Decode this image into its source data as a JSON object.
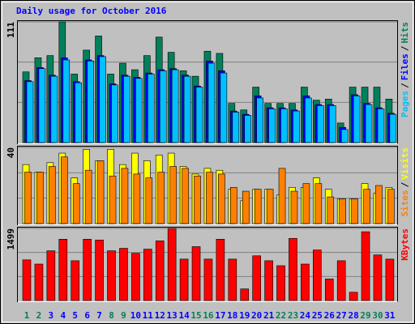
{
  "chart_data": [
    {
      "type": "bar",
      "title": "Daily usage for October 2016",
      "legend_separator": "/",
      "ylim": [
        0,
        111
      ],
      "yticks": [
        111
      ],
      "series": [
        {
          "name": "Hits",
          "color": "#00805c",
          "values": [
            65,
            78,
            80,
            111,
            63,
            85,
            98,
            63,
            73,
            67,
            80,
            97,
            83,
            66,
            61,
            84,
            82,
            36,
            30,
            51,
            36,
            36,
            36,
            51,
            39,
            40,
            18,
            51,
            51,
            51,
            40
          ]
        },
        {
          "name": "Files",
          "color": "#0000ff",
          "values": [
            57,
            69,
            62,
            78,
            56,
            76,
            80,
            54,
            62,
            60,
            64,
            67,
            68,
            62,
            52,
            75,
            66,
            29,
            26,
            43,
            32,
            32,
            30,
            43,
            35,
            35,
            14,
            44,
            36,
            32,
            27
          ]
        },
        {
          "name": "Pages",
          "color": "#00c0ff",
          "values": [
            56,
            68,
            61,
            76,
            55,
            75,
            79,
            53,
            61,
            59,
            63,
            66,
            67,
            61,
            51,
            73,
            64,
            28,
            25,
            41,
            31,
            31,
            29,
            41,
            34,
            34,
            12,
            43,
            35,
            31,
            26
          ]
        }
      ]
    },
    {
      "type": "bar",
      "legend_separator": "/",
      "ylim": [
        0,
        40
      ],
      "yticks": [
        40
      ],
      "series": [
        {
          "name": "Visits",
          "color": "#ffff00",
          "values": [
            31,
            27,
            32,
            37,
            24,
            39,
            33,
            39,
            31,
            37,
            33,
            36,
            37,
            30,
            26,
            29,
            28,
            18,
            12,
            18,
            18,
            15,
            19,
            19,
            24,
            18,
            13,
            13,
            21,
            16,
            19
          ]
        },
        {
          "name": "Sites",
          "color": "#ff8000",
          "values": [
            27,
            27,
            30,
            35,
            21,
            28,
            33,
            25,
            29,
            26,
            24,
            27,
            30,
            29,
            25,
            27,
            26,
            19,
            17,
            18,
            18,
            29,
            17,
            21,
            21,
            14,
            13,
            13,
            18,
            20,
            18
          ]
        }
      ]
    },
    {
      "type": "bar",
      "ylim": [
        0,
        1499
      ],
      "yticks": [
        1499
      ],
      "categories": [
        "1",
        "2",
        "3",
        "4",
        "5",
        "6",
        "7",
        "8",
        "9",
        "10",
        "11",
        "12",
        "13",
        "14",
        "15",
        "16",
        "17",
        "18",
        "19",
        "20",
        "21",
        "22",
        "23",
        "24",
        "25",
        "26",
        "27",
        "28",
        "29",
        "30",
        "31"
      ],
      "category_colors": [
        "#00805c",
        "#00805c",
        "#0000ff",
        "#0000ff",
        "#0000ff",
        "#0000ff",
        "#0000ff",
        "#00805c",
        "#00805c",
        "#0000ff",
        "#0000ff",
        "#0000ff",
        "#0000ff",
        "#0000ff",
        "#00805c",
        "#00805c",
        "#0000ff",
        "#0000ff",
        "#0000ff",
        "#0000ff",
        "#0000ff",
        "#00805c",
        "#00805c",
        "#0000ff",
        "#0000ff",
        "#0000ff",
        "#0000ff",
        "#0000ff",
        "#00805c",
        "#00805c",
        "#0000ff"
      ],
      "series": [
        {
          "name": "KBytes",
          "color": "#ff0000",
          "values": [
            845,
            758,
            1034,
            1275,
            827,
            1275,
            1258,
            1034,
            1086,
            982,
            1068,
            1241,
            1499,
            861,
            1120,
            861,
            1275,
            861,
            241,
            930,
            827,
            724,
            1292,
            758,
            1051,
            448,
            827,
            172,
            1430,
            948,
            861
          ]
        }
      ]
    }
  ]
}
